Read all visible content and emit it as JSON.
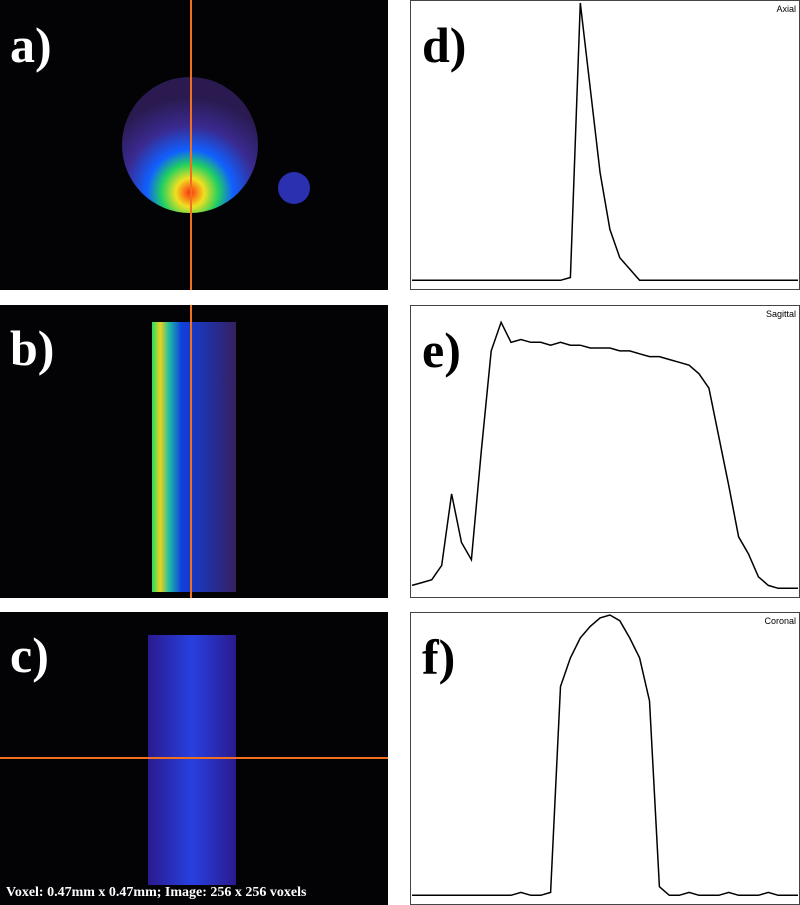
{
  "panels": [
    {
      "label": "a)"
    },
    {
      "label": "b)"
    },
    {
      "label": "c)"
    }
  ],
  "caption": "Voxel: 0.47mm x 0.47mm; Image: 256 x 256 voxels",
  "profiles": [
    {
      "label": "d)",
      "title": "Axial",
      "ylim": [
        0,
        100
      ],
      "values": [
        2,
        2,
        2,
        2,
        2,
        2,
        2,
        2,
        2,
        2,
        2,
        2,
        2,
        2,
        2,
        2,
        3,
        100,
        70,
        40,
        20,
        10,
        6,
        2,
        2,
        2,
        2,
        2,
        2,
        2,
        2,
        2,
        2,
        2,
        2,
        2,
        2,
        2,
        2,
        2
      ]
    },
    {
      "label": "e)",
      "title": "Sagittal",
      "ylim": [
        0,
        100
      ],
      "values": [
        3,
        4,
        5,
        10,
        35,
        18,
        12,
        50,
        85,
        95,
        88,
        89,
        88,
        88,
        87,
        88,
        87,
        87,
        86,
        86,
        86,
        85,
        85,
        84,
        83,
        83,
        82,
        81,
        80,
        77,
        72,
        55,
        38,
        20,
        14,
        6,
        3,
        2,
        2,
        2
      ]
    },
    {
      "label": "f)",
      "title": "Coronal",
      "ylim": [
        0,
        100
      ],
      "values": [
        2,
        2,
        2,
        2,
        2,
        2,
        2,
        2,
        2,
        2,
        2,
        3,
        2,
        2,
        3,
        75,
        85,
        92,
        96,
        99,
        100,
        98,
        92,
        85,
        70,
        5,
        2,
        2,
        3,
        2,
        2,
        2,
        3,
        2,
        2,
        2,
        3,
        2,
        2,
        2
      ]
    }
  ]
}
